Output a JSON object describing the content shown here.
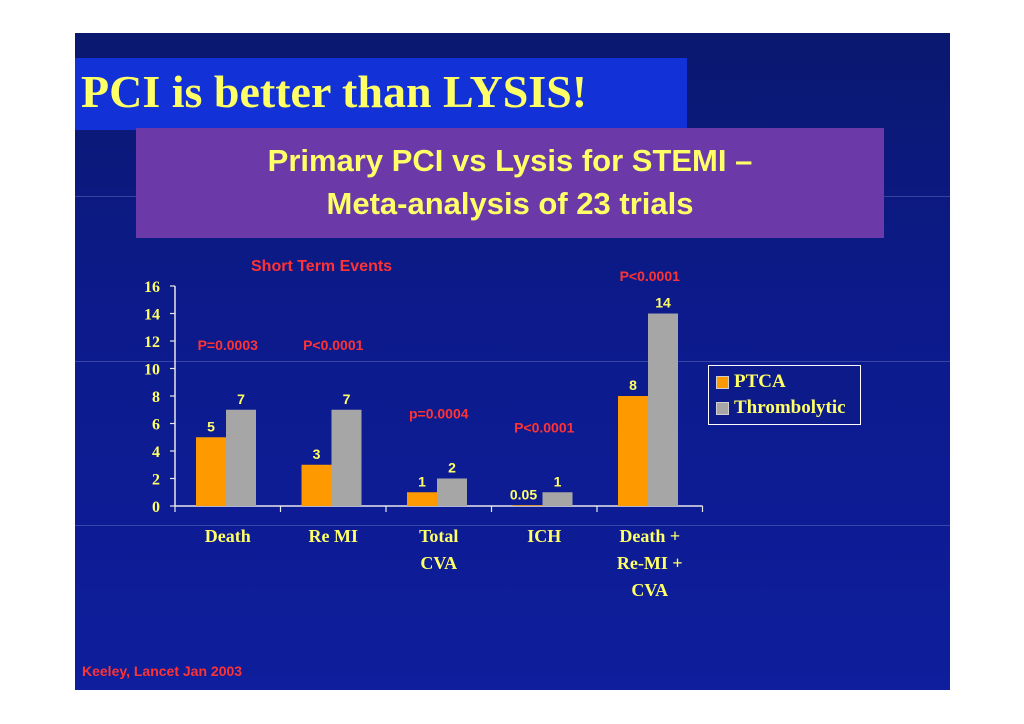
{
  "slide": {
    "title": "PCI is better than LYSIS!",
    "subtitle_line1": "Primary PCI vs Lysis for STEMI –",
    "subtitle_line2": "Meta-analysis of 23 trials",
    "footnote": "Keeley, Lancet Jan 2003"
  },
  "colors": {
    "background": "#0c1a8a",
    "title_box": "#1232d8",
    "subtitle_box": "#6b3aa8",
    "title_text": "#ffff66",
    "p_value_text": "#ff3333",
    "ptca": "#ff9900",
    "thrombolytic": "#a6a6a6"
  },
  "chart_data": {
    "type": "bar",
    "title": "Short Term Events",
    "xlabel": "",
    "ylabel": "",
    "ylim": [
      0,
      16
    ],
    "yticks": [
      0,
      2,
      4,
      6,
      8,
      10,
      12,
      14,
      16
    ],
    "categories": [
      [
        "Death"
      ],
      [
        "Re MI"
      ],
      [
        "Total",
        "CVA"
      ],
      [
        "ICH"
      ],
      [
        "Death +",
        "Re-MI +",
        "CVA"
      ]
    ],
    "series": [
      {
        "name": "PTCA",
        "values": [
          5,
          3,
          1,
          0.05,
          8
        ],
        "labels": [
          "5",
          "3",
          "1",
          "0.05",
          "8"
        ],
        "color": "#ff9900"
      },
      {
        "name": "Thrombolytic",
        "values": [
          7,
          7,
          2,
          1,
          14
        ],
        "labels": [
          "7",
          "7",
          "2",
          "1",
          "14"
        ],
        "color": "#a6a6a6"
      }
    ],
    "p_values": [
      "P=0.0003",
      "P<0.0001",
      "p=0.0004",
      "P<0.0001",
      "P<0.0001"
    ],
    "grid": false,
    "legend_position": "right"
  }
}
